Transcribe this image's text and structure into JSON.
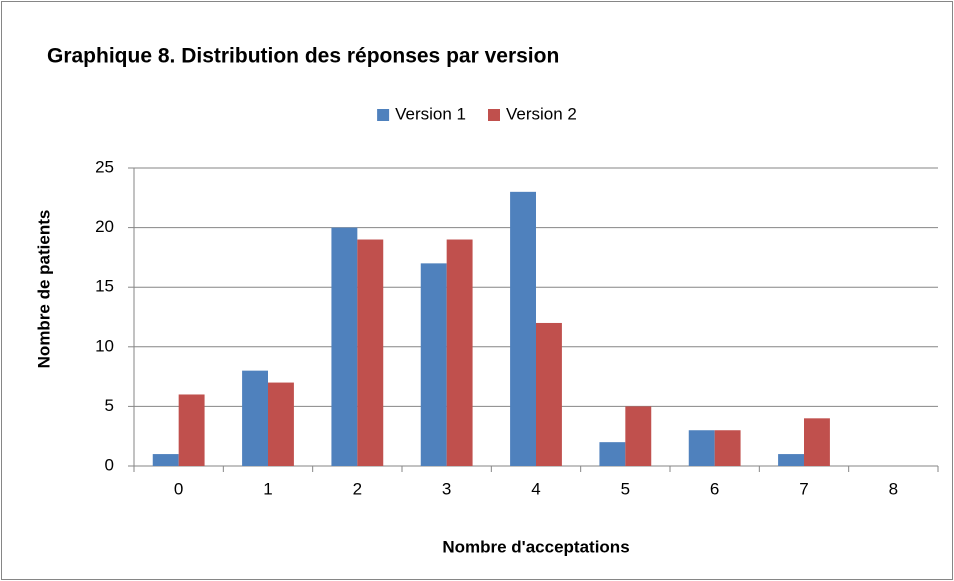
{
  "chart_data": {
    "type": "bar",
    "title": "Graphique 8. Distribution des réponses par version",
    "x_label": "Nombre d'acceptations",
    "y_label": "Nombre de patients",
    "categories": [
      "0",
      "1",
      "2",
      "3",
      "4",
      "5",
      "6",
      "7",
      "8"
    ],
    "series": [
      {
        "name": "Version 1",
        "color": "#4f81bd",
        "values": [
          1,
          8,
          20,
          17,
          23,
          2,
          3,
          1,
          0
        ]
      },
      {
        "name": "Version 2",
        "color": "#c0504d",
        "values": [
          6,
          7,
          19,
          19,
          12,
          5,
          3,
          4,
          0
        ]
      }
    ],
    "ylim": [
      0,
      25
    ],
    "yticks": [
      0,
      5,
      10,
      15,
      20,
      25
    ],
    "grid": true,
    "legend": "top"
  }
}
